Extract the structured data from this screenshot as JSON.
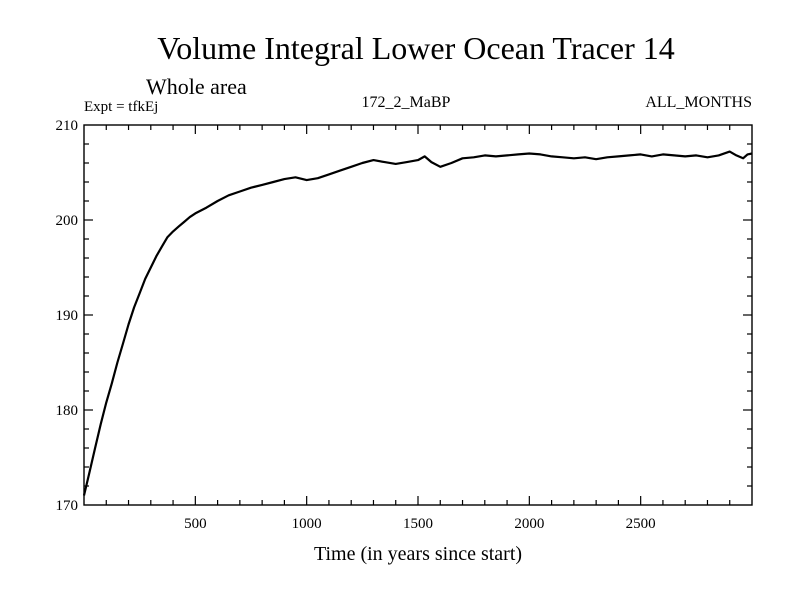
{
  "chart_data": {
    "type": "line",
    "title": "Volume Integral Lower Ocean Tracer 14",
    "subtitle": "Whole area",
    "experiment_label": "Expt = tfkEj",
    "center_label": "172_2_MaBP",
    "right_label": "ALL_MONTHS",
    "xlabel": "Time (in years since start)",
    "ylabel": "",
    "xlim": [
      0,
      3000
    ],
    "ylim": [
      170,
      210
    ],
    "x_ticks": [
      500,
      1000,
      1500,
      2000,
      2500
    ],
    "y_ticks": [
      170,
      180,
      190,
      200,
      210
    ],
    "grid": false,
    "series": [
      {
        "x": [
          0,
          25,
          50,
          75,
          100,
          125,
          150,
          175,
          200,
          225,
          250,
          275,
          300,
          325,
          350,
          375,
          400,
          425,
          450,
          475,
          500,
          550,
          600,
          650,
          700,
          750,
          800,
          850,
          900,
          950,
          1000,
          1050,
          1100,
          1150,
          1200,
          1250,
          1300,
          1350,
          1400,
          1450,
          1500,
          1530,
          1560,
          1600,
          1650,
          1700,
          1750,
          1800,
          1850,
          1900,
          1950,
          2000,
          2050,
          2100,
          2150,
          2200,
          2250,
          2300,
          2350,
          2400,
          2450,
          2500,
          2550,
          2600,
          2650,
          2700,
          2750,
          2800,
          2850,
          2900,
          2930,
          2960,
          2980,
          3000
        ],
        "y": [
          171.0,
          173.5,
          176.0,
          178.5,
          180.8,
          182.8,
          185.0,
          187.0,
          189.0,
          190.8,
          192.3,
          193.8,
          195.0,
          196.2,
          197.2,
          198.2,
          198.8,
          199.3,
          199.8,
          200.3,
          200.7,
          201.3,
          202.0,
          202.6,
          203.0,
          203.4,
          203.7,
          204.0,
          204.3,
          204.5,
          204.2,
          204.4,
          204.8,
          205.2,
          205.6,
          206.0,
          206.3,
          206.1,
          205.9,
          206.1,
          206.3,
          206.7,
          206.1,
          205.6,
          206.0,
          206.5,
          206.6,
          206.8,
          206.7,
          206.8,
          206.9,
          207.0,
          206.9,
          206.7,
          206.6,
          206.5,
          206.6,
          206.4,
          206.6,
          206.7,
          206.8,
          206.9,
          206.7,
          206.9,
          206.8,
          206.7,
          206.8,
          206.6,
          206.8,
          207.2,
          206.8,
          206.5,
          206.9,
          207.0
        ]
      }
    ]
  }
}
